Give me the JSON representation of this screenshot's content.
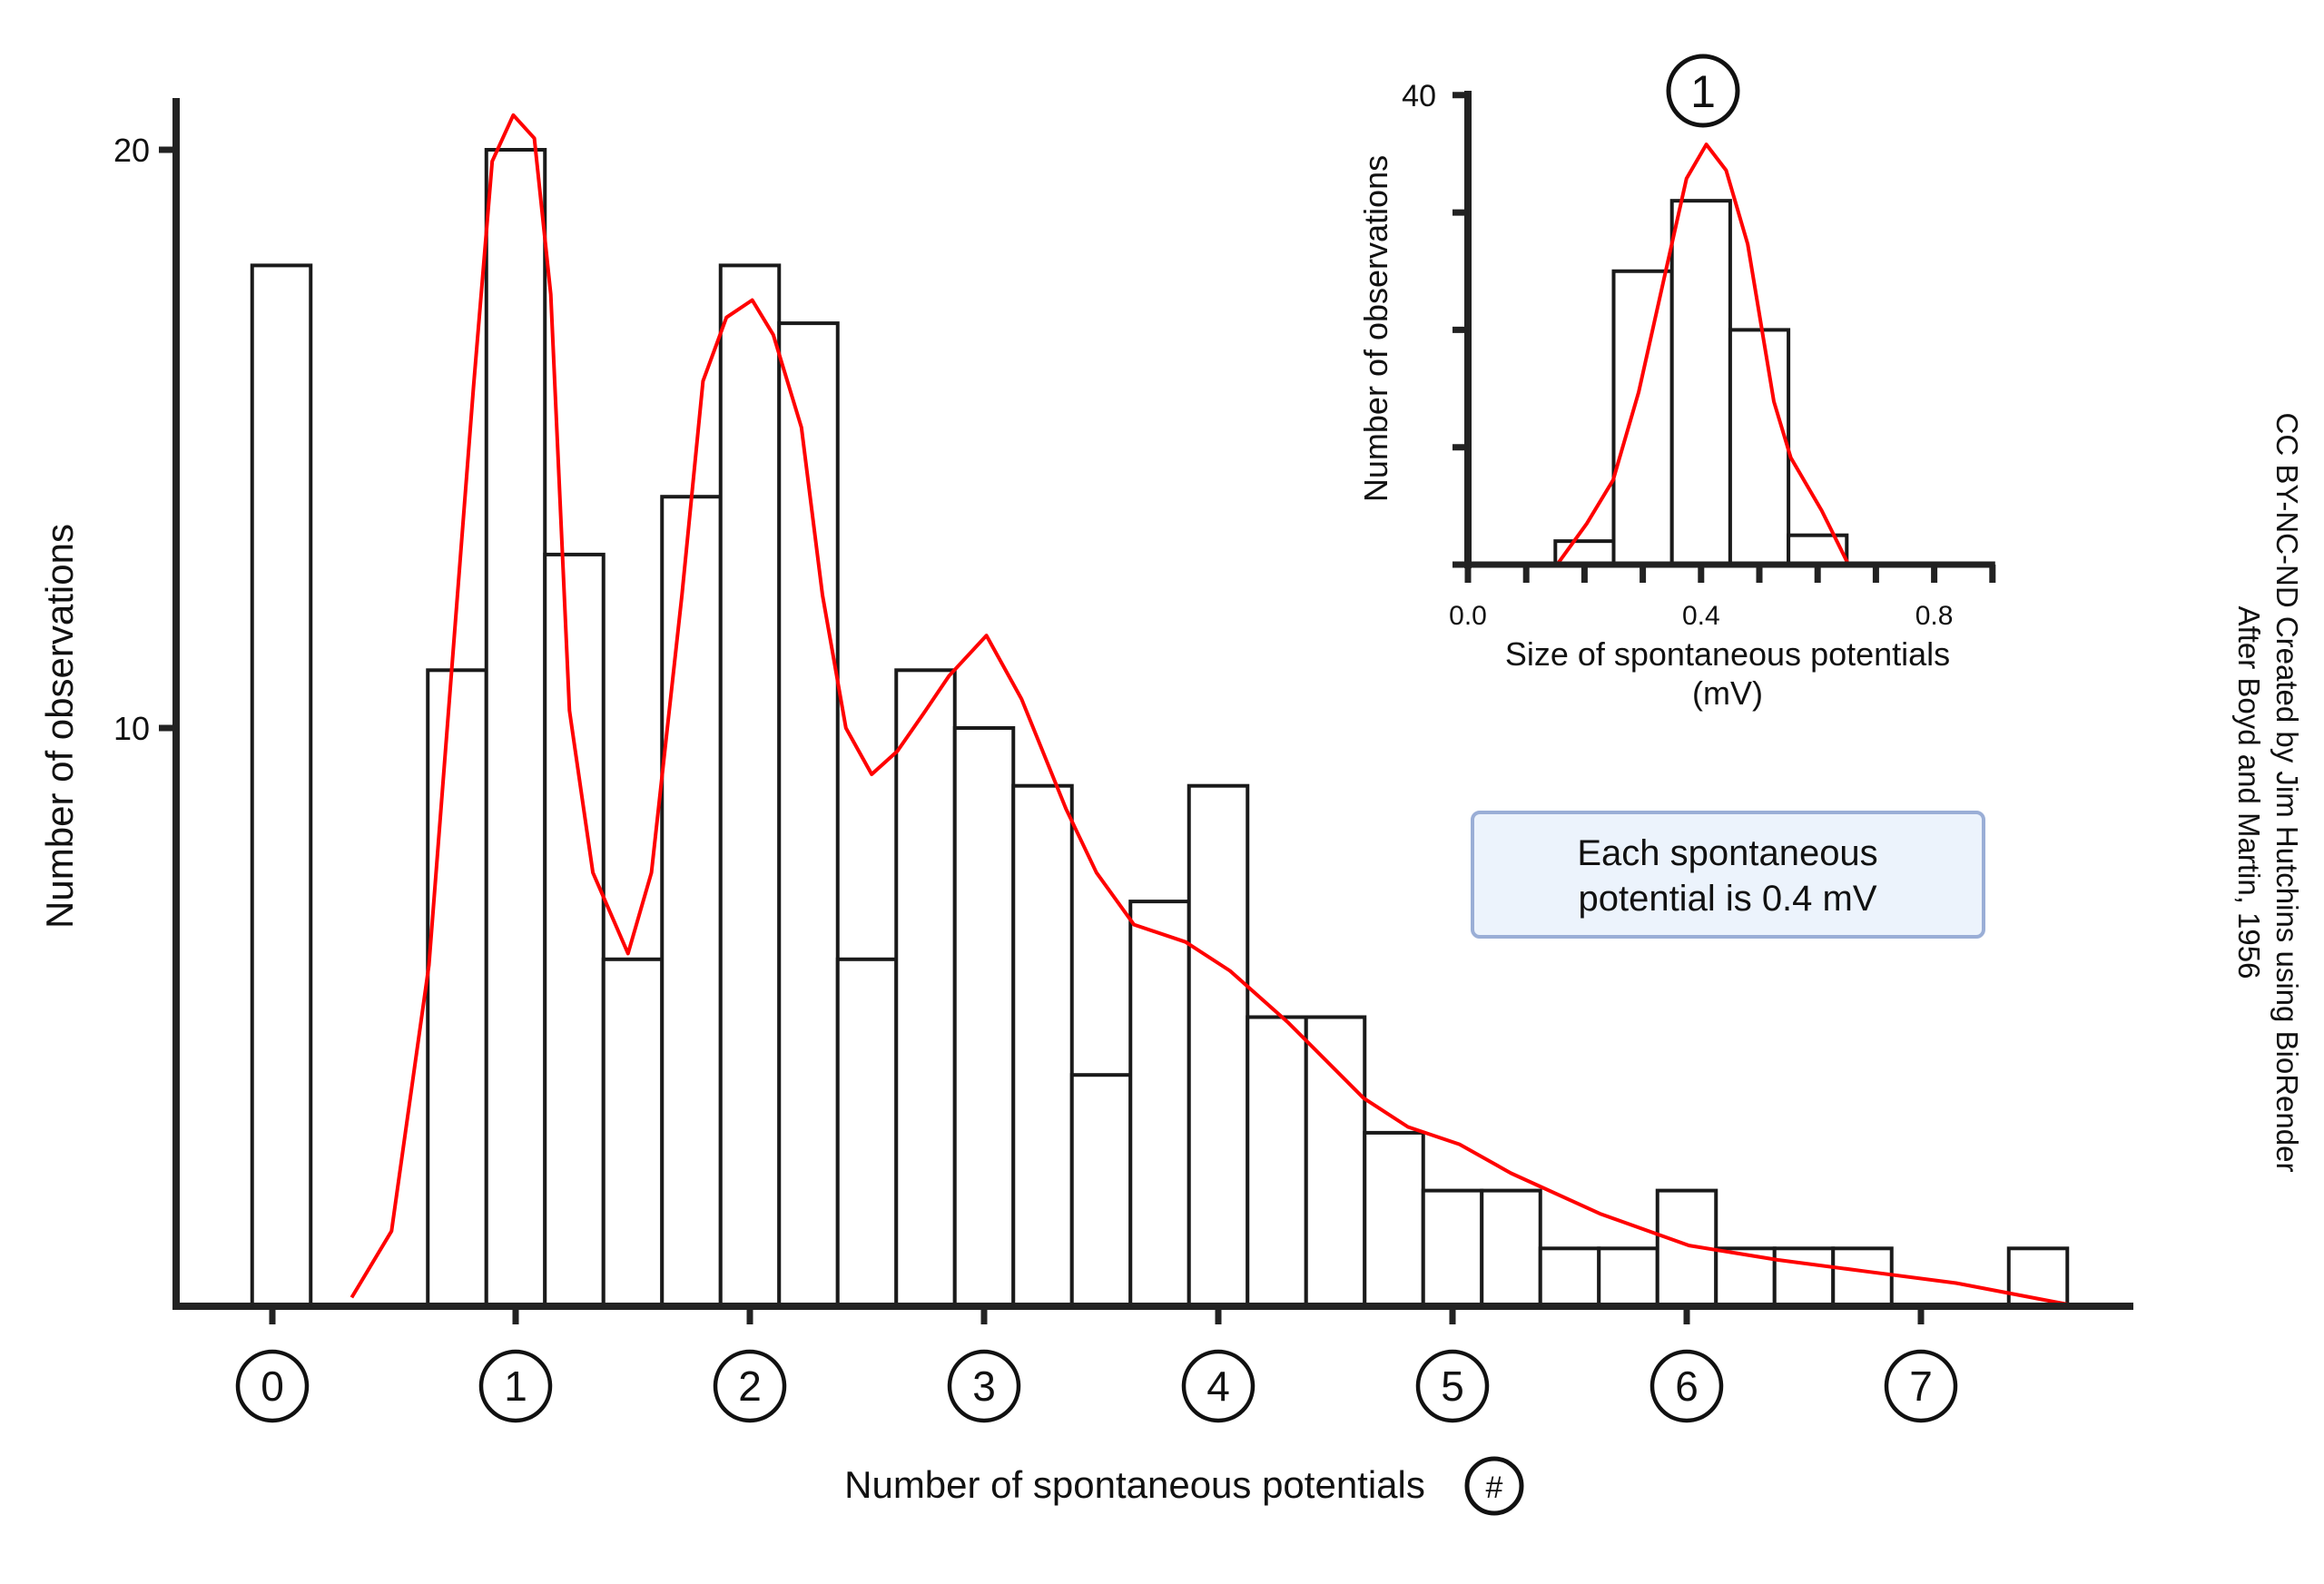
{
  "chart_data": [
    {
      "type": "bar",
      "xlabel": "Number of spontaneous potentials",
      "xlabel_badge": "#",
      "ylabel": "Number of observations",
      "ylim": [
        0,
        20.8
      ],
      "xlim": [
        -0.4,
        8.5
      ],
      "bin_width": 0.25,
      "yticks": [
        10,
        20
      ],
      "xticks": [
        0,
        1,
        2,
        3,
        4,
        5,
        6,
        7
      ],
      "xtick_labels": [
        "0",
        "1",
        "2",
        "3",
        "4",
        "5",
        "6",
        "7"
      ],
      "bars": [
        {
          "start": -0.125,
          "value": 18
        },
        {
          "start": 0.625,
          "value": 11
        },
        {
          "start": 0.875,
          "value": 20
        },
        {
          "start": 1.125,
          "value": 13
        },
        {
          "start": 1.375,
          "value": 6
        },
        {
          "start": 1.625,
          "value": 14
        },
        {
          "start": 1.875,
          "value": 18
        },
        {
          "start": 2.125,
          "value": 17
        },
        {
          "start": 2.375,
          "value": 6
        },
        {
          "start": 2.625,
          "value": 11
        },
        {
          "start": 2.875,
          "value": 10
        },
        {
          "start": 3.125,
          "value": 9
        },
        {
          "start": 3.375,
          "value": 4
        },
        {
          "start": 3.625,
          "value": 7
        },
        {
          "start": 3.875,
          "value": 9
        },
        {
          "start": 4.125,
          "value": 5
        },
        {
          "start": 4.375,
          "value": 5
        },
        {
          "start": 4.625,
          "value": 3
        },
        {
          "start": 4.875,
          "value": 2
        },
        {
          "start": 5.125,
          "value": 2
        },
        {
          "start": 5.375,
          "value": 1
        },
        {
          "start": 5.625,
          "value": 1
        },
        {
          "start": 5.875,
          "value": 2
        },
        {
          "start": 6.125,
          "value": 1
        },
        {
          "start": 6.375,
          "value": 1
        },
        {
          "start": 6.625,
          "value": 1
        },
        {
          "start": 7.375,
          "value": 1
        }
      ],
      "fit_curve": {
        "color": "#ff0000",
        "points": [
          [
            0.3,
            0.15
          ],
          [
            0.47,
            1.3
          ],
          [
            0.63,
            5.9
          ],
          [
            0.82,
            15.9
          ],
          [
            0.9,
            19.8
          ],
          [
            0.99,
            20.6
          ],
          [
            1.08,
            20.2
          ],
          [
            1.15,
            17.5
          ],
          [
            1.23,
            10.3
          ],
          [
            1.33,
            7.5
          ],
          [
            1.48,
            6.1
          ],
          [
            1.58,
            7.5
          ],
          [
            1.71,
            12.3
          ],
          [
            1.8,
            16.0
          ],
          [
            1.9,
            17.1
          ],
          [
            2.01,
            17.4
          ],
          [
            2.1,
            16.8
          ],
          [
            2.22,
            15.2
          ],
          [
            2.31,
            12.3
          ],
          [
            2.41,
            10.0
          ],
          [
            2.52,
            9.2
          ],
          [
            2.63,
            9.6
          ],
          [
            2.75,
            10.3
          ],
          [
            2.85,
            10.9
          ],
          [
            3.01,
            11.6
          ],
          [
            3.16,
            10.5
          ],
          [
            3.35,
            8.6
          ],
          [
            3.48,
            7.5
          ],
          [
            3.64,
            6.6
          ],
          [
            3.86,
            6.3
          ],
          [
            4.05,
            5.8
          ],
          [
            4.3,
            4.9
          ],
          [
            4.62,
            3.6
          ],
          [
            4.81,
            3.1
          ],
          [
            5.03,
            2.8
          ],
          [
            5.25,
            2.3
          ],
          [
            5.63,
            1.6
          ],
          [
            6.01,
            1.05
          ],
          [
            6.39,
            0.8
          ],
          [
            6.77,
            0.6
          ],
          [
            7.15,
            0.4
          ],
          [
            7.63,
            0.03
          ]
        ]
      }
    },
    {
      "type": "bar",
      "title_badge": "1",
      "xlabel": "Size of spontaneous potentials",
      "xlabel_unit": "(mV)",
      "ylabel": "Number of observations",
      "ylim": [
        0,
        40
      ],
      "xlim": [
        0,
        0.9
      ],
      "bin_width": 0.1,
      "yticks": [
        0,
        10,
        20,
        30,
        40
      ],
      "ytick_labels": {
        "40": "40"
      },
      "xticks_minor": [
        0,
        0.1,
        0.2,
        0.3,
        0.4,
        0.5,
        0.6,
        0.7,
        0.8,
        0.9
      ],
      "xtick_labels": [
        {
          "x": 0.0,
          "label": "0.0"
        },
        {
          "x": 0.4,
          "label": "0.4"
        },
        {
          "x": 0.8,
          "label": "0.8"
        }
      ],
      "bars": [
        {
          "start": 0.15,
          "value": 2
        },
        {
          "start": 0.25,
          "value": 25
        },
        {
          "start": 0.35,
          "value": 31
        },
        {
          "start": 0.45,
          "value": 20
        },
        {
          "start": 0.55,
          "value": 2.5
        }
      ],
      "fit_curve": {
        "color": "#ff0000",
        "points": [
          [
            0.153,
            0
          ],
          [
            0.204,
            3.5
          ],
          [
            0.249,
            7.2
          ],
          [
            0.293,
            14.7
          ],
          [
            0.338,
            24.7
          ],
          [
            0.375,
            32.9
          ],
          [
            0.409,
            35.8
          ],
          [
            0.443,
            33.6
          ],
          [
            0.48,
            27.3
          ],
          [
            0.525,
            13.9
          ],
          [
            0.554,
            9.1
          ],
          [
            0.607,
            4.6
          ],
          [
            0.651,
            0.2
          ]
        ]
      }
    }
  ],
  "annotation": {
    "text_line1": "Each spontaneous",
    "text_line2": "potential is 0.4 mV",
    "fill": "#ecf3fc",
    "border": "#9aaed6"
  },
  "credits": {
    "line1": "CC BY-NC-ND Created by Jim Hutchins using BioRender",
    "line2": "After Boyd and Martin, 1956"
  }
}
